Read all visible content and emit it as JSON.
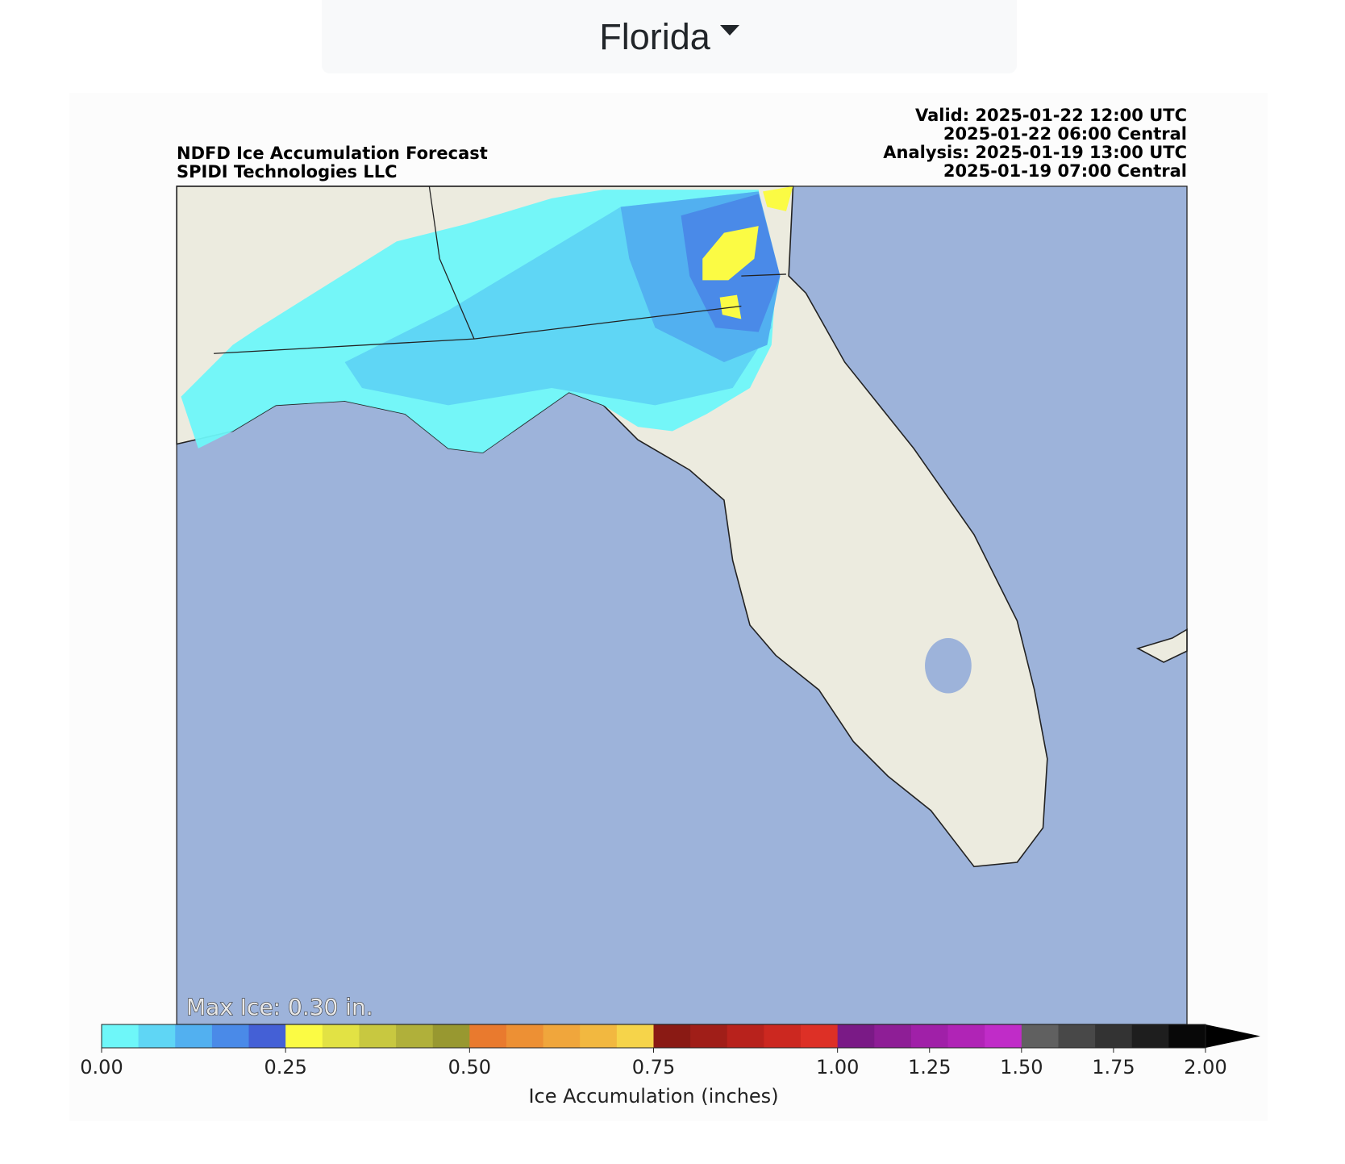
{
  "dropdown": {
    "label": "Florida"
  },
  "header": {
    "left": [
      "NDFD Ice Accumulation Forecast",
      "SPIDI Technologies LLC"
    ],
    "right": [
      "Valid: 2025-01-22 12:00 UTC",
      "2025-01-22 06:00 Central",
      "Analysis: 2025-01-19 13:00 UTC",
      "2025-01-19 07:00 Central"
    ]
  },
  "map": {
    "annotation": "Max Ice: 0.30 in."
  },
  "colorbar": {
    "label": "Ice Accumulation (inches)",
    "levels": [
      0,
      0.05,
      0.1,
      0.15,
      0.2,
      0.25,
      0.3,
      0.35,
      0.4,
      0.45,
      0.5,
      0.55,
      0.6,
      0.65,
      0.7,
      0.75,
      0.8,
      0.85,
      0.9,
      0.95,
      1.0,
      1.1,
      1.2,
      1.3,
      1.4,
      1.5,
      1.6,
      1.7,
      1.8,
      1.9,
      2.0
    ],
    "colors": [
      "#6ef7f9",
      "#5fd6f5",
      "#52b0f0",
      "#4a8ae8",
      "#4460d6",
      "#fbfb44",
      "#e2e244",
      "#c8c840",
      "#b0b03a",
      "#989830",
      "#e97a2e",
      "#ed9034",
      "#f0a63c",
      "#f2b840",
      "#f6d44a",
      "#8a1a14",
      "#a01e18",
      "#b8221c",
      "#cc2820",
      "#dd3026",
      "#7a1a86",
      "#8e1e96",
      "#a020a8",
      "#b024b6",
      "#c02cc8",
      "#606060",
      "#484848",
      "#333333",
      "#1e1e1e",
      "#080808"
    ],
    "extend_color": "#000000",
    "ticks": [
      {
        "value": 0,
        "label": "0.00"
      },
      {
        "value": 0.25,
        "label": "0.25"
      },
      {
        "value": 0.5,
        "label": "0.50"
      },
      {
        "value": 0.75,
        "label": "0.75"
      },
      {
        "value": 1.0,
        "label": "1.00"
      },
      {
        "value": 1.25,
        "label": "1.25"
      },
      {
        "value": 1.5,
        "label": "1.50"
      },
      {
        "value": 1.75,
        "label": "1.75"
      },
      {
        "value": 2.0,
        "label": "2.00"
      }
    ]
  }
}
